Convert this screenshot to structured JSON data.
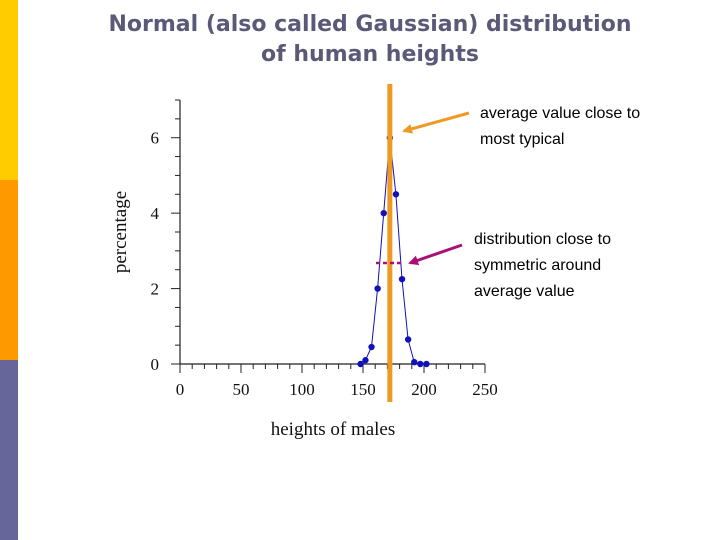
{
  "title": {
    "line1": "Normal (also called Gaussian) distribution",
    "line2": "of human heights"
  },
  "annotations": {
    "average": {
      "line1": "average value close to",
      "line2": "most typical"
    },
    "symmetric": {
      "line1": "distribution close to",
      "line2": "symmetric around",
      "line3": "average value"
    }
  },
  "colors": {
    "bar_top": "#ffcc00",
    "bar_mid": "#ff9900",
    "bar_bottom": "#66669a",
    "title": "#5a5a78",
    "series": "#1111bb",
    "mean_line": "#ee9a22",
    "arrow_orange": "#ee9a22",
    "arrow_purple": "#aa1177"
  },
  "chart_data": {
    "type": "line",
    "title": "",
    "xlabel": "heights of males",
    "ylabel": "percentage",
    "xlim": [
      0,
      250
    ],
    "ylim": [
      0,
      7
    ],
    "xticks": [
      0,
      50,
      100,
      150,
      200,
      250
    ],
    "yticks": [
      0,
      2,
      4,
      6
    ],
    "mean": 172,
    "series": [
      {
        "name": "heights of males",
        "x": [
          148,
          152,
          157,
          162,
          167,
          172,
          177,
          182,
          187,
          192,
          197,
          202
        ],
        "y": [
          0.0,
          0.1,
          0.45,
          2.0,
          4.0,
          6.0,
          4.5,
          2.25,
          0.65,
          0.05,
          0.0,
          0.0
        ]
      }
    ]
  }
}
